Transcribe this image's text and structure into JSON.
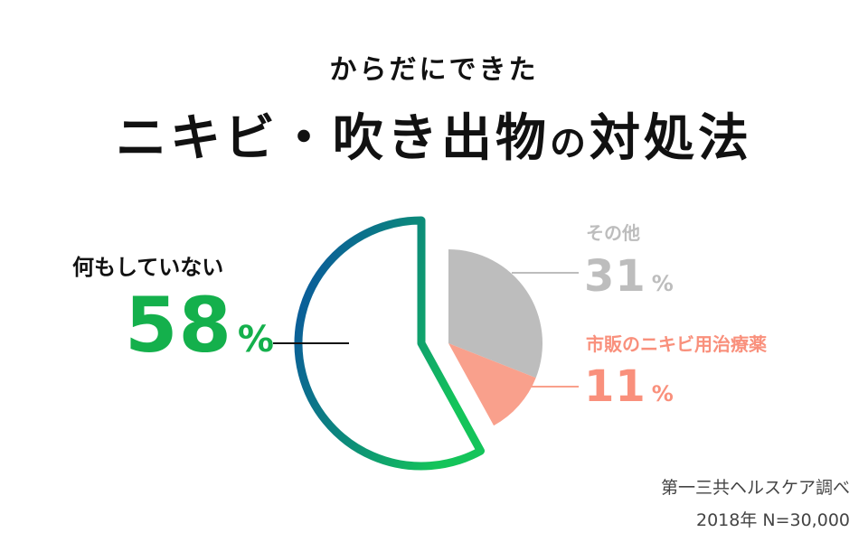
{
  "header": {
    "subtitle": "からだにできた",
    "title_main": "ニキビ・吹き出物",
    "title_particle": "の",
    "title_end": "対処法"
  },
  "chart_data": {
    "type": "pie",
    "title": "ニキビ・吹き出物の対処法",
    "subtitle": "からだにできた",
    "unit": "%",
    "slices": [
      {
        "label": "何もしていない",
        "value": 58,
        "style": "outline",
        "colors": [
          "#14b04c",
          "#0a5aa8"
        ]
      },
      {
        "label": "その他",
        "value": 31,
        "color": "#bdbdbd"
      },
      {
        "label": "市販のニキビ用治療薬",
        "value": 11,
        "color": "#f9a08c"
      }
    ]
  },
  "labels": {
    "nothing": {
      "name": "何もしていない",
      "value": "58",
      "unit": "%"
    },
    "other": {
      "name": "その他",
      "value": "31",
      "unit": "%"
    },
    "medicine": {
      "name": "市販のニキビ用治療薬",
      "value": "11",
      "unit": "%"
    }
  },
  "source": {
    "line1": "第一三共ヘルスケア調べ",
    "line2": "2018年 N=30,000"
  }
}
